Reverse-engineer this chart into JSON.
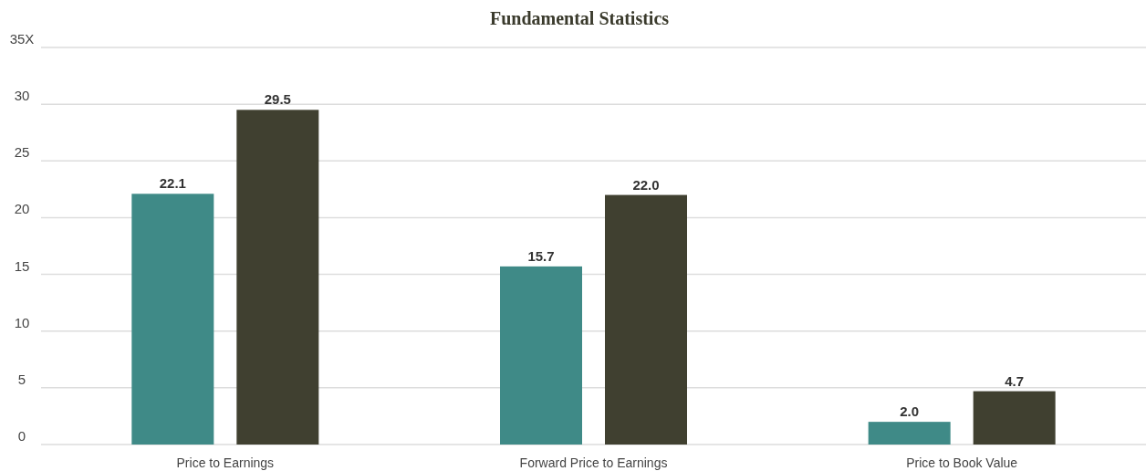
{
  "chart_data": {
    "type": "bar",
    "title": "Fundamental Statistics",
    "categories": [
      "Price to Earnings",
      "Forward Price to Earnings",
      "Price to Book Value"
    ],
    "series": [
      {
        "color": "#3f8a87",
        "values": [
          22.1,
          15.7,
          2.0
        ],
        "value_labels": [
          "22.1",
          "15.7",
          "2.0"
        ]
      },
      {
        "color": "#404030",
        "values": [
          29.5,
          22.0,
          4.7
        ],
        "value_labels": [
          "29.5",
          "22.0",
          "4.7"
        ]
      }
    ],
    "ylim": [
      0,
      35
    ],
    "yticks": [
      0,
      5,
      10,
      15,
      20,
      25,
      30,
      {
        "value": 35,
        "label": "35X"
      }
    ],
    "grid": "y"
  }
}
